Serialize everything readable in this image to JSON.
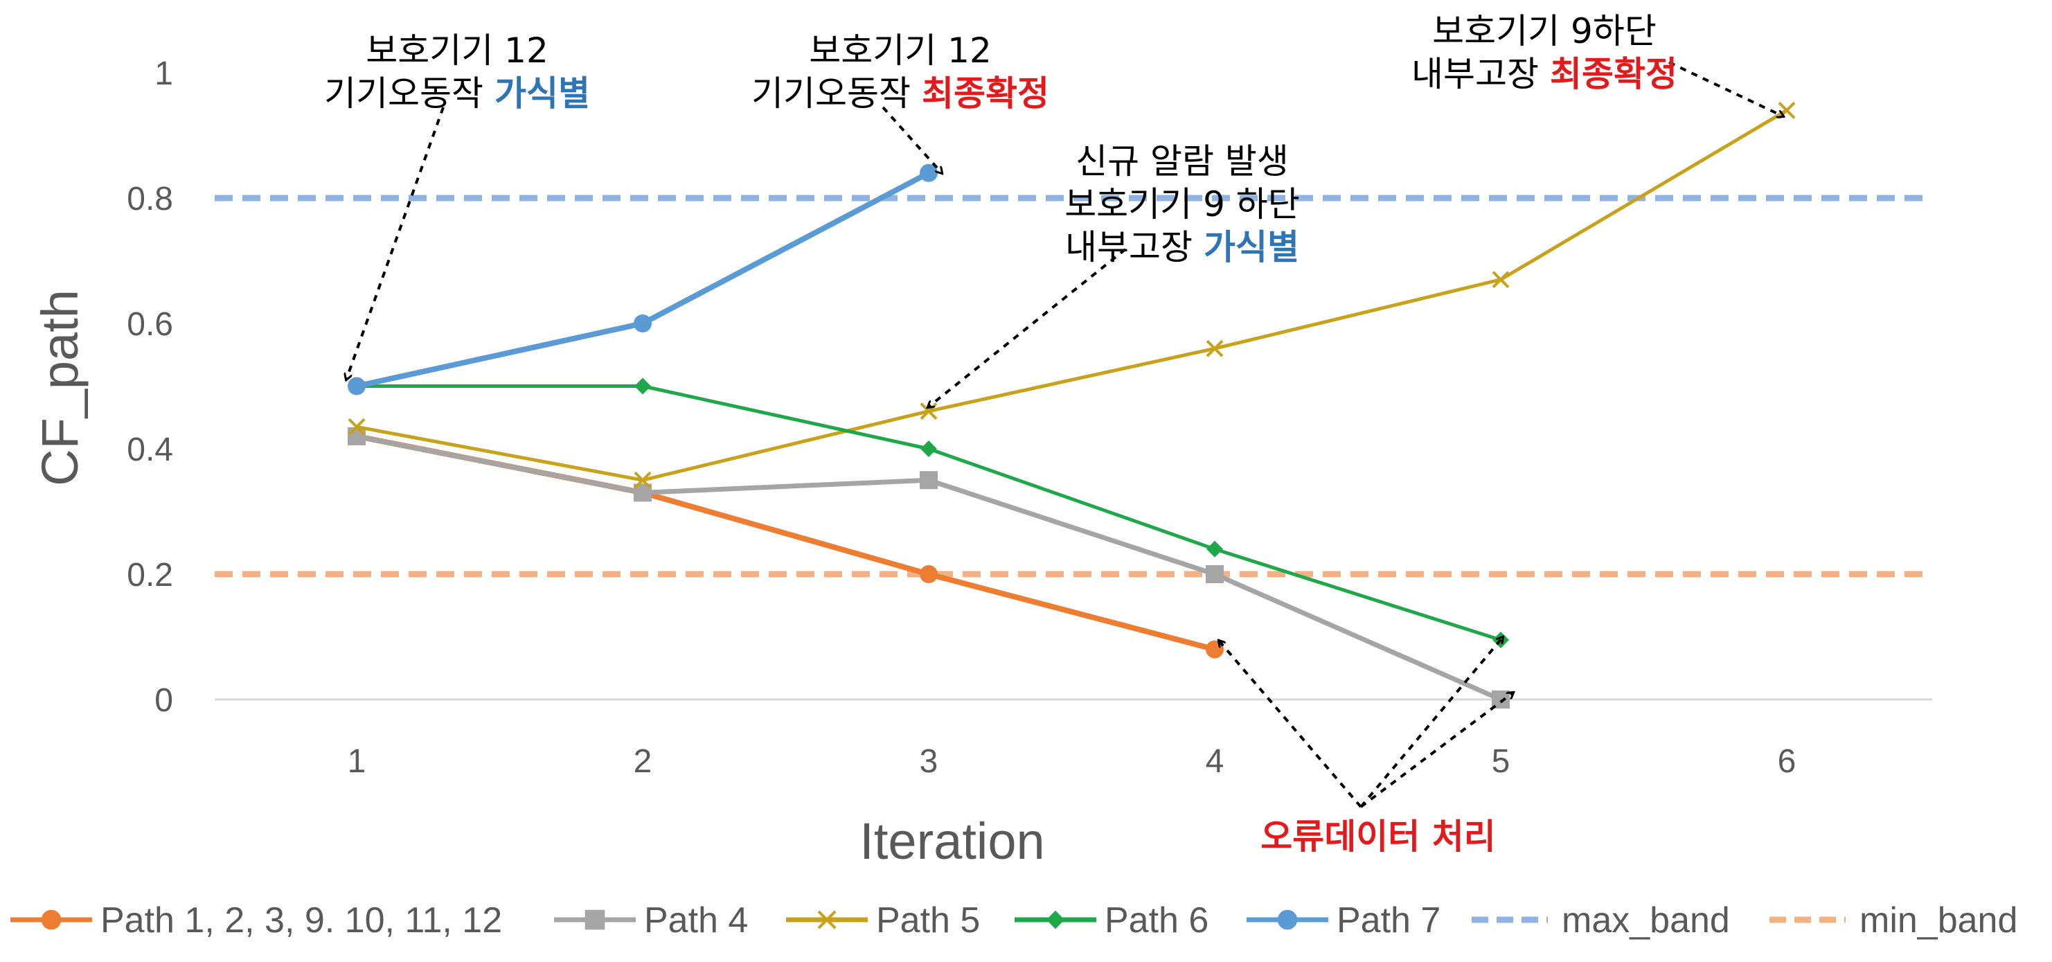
{
  "chart_data": {
    "type": "line",
    "x": [
      1,
      2,
      3,
      4,
      5,
      6
    ],
    "xlabel": "Iteration",
    "ylabel": "CF_path",
    "ylim": [
      0,
      1
    ],
    "y_ticks": [
      "0",
      "0.2",
      "0.4",
      "0.6",
      "0.8",
      "1"
    ],
    "x_ticks": [
      "1",
      "2",
      "3",
      "4",
      "5",
      "6"
    ],
    "grid": false,
    "legend_position": "bottom",
    "series": [
      {
        "name": "Path 1, 2, 3, 9. 10, 11, 12",
        "x": [
          1,
          2,
          3,
          4
        ],
        "values": [
          0.42,
          0.33,
          0.2,
          0.08
        ],
        "color": "#ED7D31",
        "marker": "circle"
      },
      {
        "name": "Path 4",
        "x": [
          1,
          2,
          3,
          4,
          5
        ],
        "values": [
          0.42,
          0.33,
          0.35,
          0.2,
          0
        ],
        "color": "#A5A5A5",
        "marker": "square"
      },
      {
        "name": "Path 5",
        "x": [
          1,
          2,
          3,
          4,
          5,
          6
        ],
        "values": [
          0.435,
          0.35,
          0.46,
          0.56,
          0.67,
          0.94
        ],
        "color": "#C9A21B",
        "marker": "x"
      },
      {
        "name": "Path 6",
        "x": [
          1,
          2,
          3,
          4,
          5
        ],
        "values": [
          0.5,
          0.5,
          0.4,
          0.24,
          0.095
        ],
        "color": "#1FA84A",
        "marker": "diamond"
      },
      {
        "name": "Path 7",
        "x": [
          1,
          2,
          3
        ],
        "values": [
          0.5,
          0.6,
          0.84
        ],
        "color": "#5B9BD5",
        "marker": "circle"
      },
      {
        "name": "max_band",
        "x": [
          1,
          6.5
        ],
        "values": [
          0.8,
          0.8
        ],
        "color": "#8FB4E3",
        "dashed": true
      },
      {
        "name": "min_band",
        "x": [
          1,
          6.5
        ],
        "values": [
          0.2,
          0.2
        ],
        "color": "#F4B183",
        "dashed": true
      }
    ],
    "annotations": [
      {
        "lines": [
          [
            {
              "text": "보호기기 12"
            }
          ],
          [
            {
              "text": "기기오동작 "
            },
            {
              "text": "가식별",
              "color": "#2E75B6",
              "bold": true
            }
          ]
        ],
        "target": [
          1,
          0.5
        ]
      },
      {
        "lines": [
          [
            {
              "text": "보호기기 12"
            }
          ],
          [
            {
              "text": "기기오동작 "
            },
            {
              "text": "최종확정",
              "color": "#E31A1C",
              "bold": true
            }
          ]
        ],
        "target": [
          3,
          0.84
        ]
      },
      {
        "lines": [
          [
            {
              "text": "신규 알람 발생"
            }
          ],
          [
            {
              "text": "보호기기 9 하단"
            }
          ],
          [
            {
              "text": "내부고장 "
            },
            {
              "text": "가식별",
              "color": "#2E75B6",
              "bold": true
            }
          ]
        ],
        "target": [
          3,
          0.46
        ]
      },
      {
        "lines": [
          [
            {
              "text": "보호기기 9하단"
            }
          ],
          [
            {
              "text": "내부고장 "
            },
            {
              "text": "최종확정",
              "color": "#E31A1C",
              "bold": true
            }
          ]
        ],
        "target": [
          6,
          0.94
        ]
      },
      {
        "lines": [
          [
            {
              "text": "오류데이터 처리",
              "color": "#E31A1C",
              "bold": true
            }
          ]
        ],
        "targets": [
          [
            4,
            0.08
          ],
          [
            5,
            0.095
          ],
          [
            5,
            0
          ]
        ]
      }
    ]
  }
}
